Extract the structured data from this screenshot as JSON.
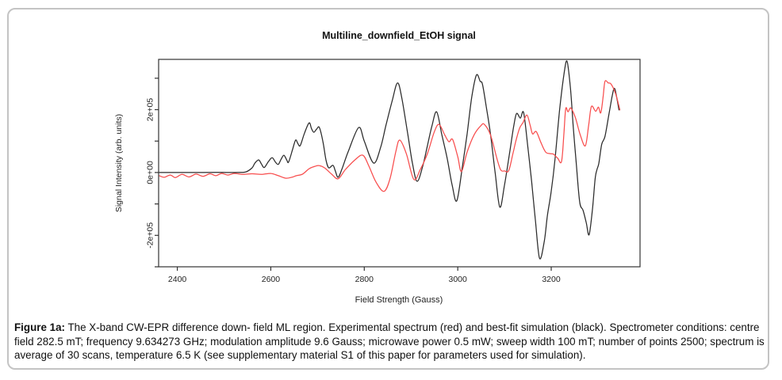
{
  "figure": {
    "background": "#ffffff",
    "border_color": "#c4c4c4",
    "axis_color": "#333333",
    "tick_label_color": "#222222"
  },
  "chart_data": {
    "type": "line",
    "title": "Multiline_downfield_EtOH signal",
    "xlabel": "Field Strength (Gauss)",
    "ylabel": "Signal Intensity (arb. units)",
    "xlim": [
      2360,
      3390
    ],
    "ylim": [
      -300000,
      360000
    ],
    "grid": false,
    "legend_position": "none",
    "x_ticks": [
      {
        "value": 2400,
        "label": "2400"
      },
      {
        "value": 2600,
        "label": "2600"
      },
      {
        "value": 2800,
        "label": "2800"
      },
      {
        "value": 3000,
        "label": "3000"
      },
      {
        "value": 3200,
        "label": "3200"
      }
    ],
    "y_ticks": [
      {
        "value": 300000,
        "label": ""
      },
      {
        "value": 200000,
        "label": "2e+05"
      },
      {
        "value": 100000,
        "label": ""
      },
      {
        "value": 0,
        "label": "0e+00"
      },
      {
        "value": -100000,
        "label": ""
      },
      {
        "value": -200000,
        "label": "-2e+05"
      },
      {
        "value": -300000,
        "label": ""
      }
    ],
    "series": [
      {
        "name": "best-fit simulation (black)",
        "color": "#2b2b2b",
        "points": [
          [
            2361,
            0
          ],
          [
            2400,
            0
          ],
          [
            2440,
            0
          ],
          [
            2480,
            500
          ],
          [
            2510,
            0
          ],
          [
            2535,
            500
          ],
          [
            2547,
            2000
          ],
          [
            2560,
            15000
          ],
          [
            2566,
            30000
          ],
          [
            2574,
            40000
          ],
          [
            2580,
            27000
          ],
          [
            2586,
            16000
          ],
          [
            2595,
            35000
          ],
          [
            2603,
            47000
          ],
          [
            2610,
            33000
          ],
          [
            2616,
            26000
          ],
          [
            2622,
            42000
          ],
          [
            2628,
            55000
          ],
          [
            2634,
            40000
          ],
          [
            2638,
            33000
          ],
          [
            2646,
            70000
          ],
          [
            2653,
            103000
          ],
          [
            2658,
            92000
          ],
          [
            2663,
            86000
          ],
          [
            2672,
            125000
          ],
          [
            2682,
            158000
          ],
          [
            2687,
            140000
          ],
          [
            2692,
            128000
          ],
          [
            2698,
            138000
          ],
          [
            2704,
            143000
          ],
          [
            2712,
            95000
          ],
          [
            2718,
            40000
          ],
          [
            2724,
            15000
          ],
          [
            2733,
            23000
          ],
          [
            2738,
            5000
          ],
          [
            2744,
            -15000
          ],
          [
            2752,
            10000
          ],
          [
            2766,
            68000
          ],
          [
            2788,
            143000
          ],
          [
            2800,
            100000
          ],
          [
            2820,
            30000
          ],
          [
            2835,
            80000
          ],
          [
            2846,
            148000
          ],
          [
            2860,
            230000
          ],
          [
            2871,
            285000
          ],
          [
            2880,
            240000
          ],
          [
            2893,
            123000
          ],
          [
            2903,
            30000
          ],
          [
            2913,
            -28000
          ],
          [
            2925,
            20000
          ],
          [
            2935,
            85000
          ],
          [
            2945,
            150000
          ],
          [
            2955,
            193000
          ],
          [
            2966,
            120000
          ],
          [
            2977,
            48000
          ],
          [
            2988,
            -40000
          ],
          [
            2998,
            -90000
          ],
          [
            3010,
            20000
          ],
          [
            3020,
            123000
          ],
          [
            3030,
            240000
          ],
          [
            3040,
            310000
          ],
          [
            3048,
            290000
          ],
          [
            3053,
            280000
          ],
          [
            3062,
            200000
          ],
          [
            3070,
            123000
          ],
          [
            3080,
            0
          ],
          [
            3090,
            -110000
          ],
          [
            3100,
            -40000
          ],
          [
            3112,
            73000
          ],
          [
            3120,
            150000
          ],
          [
            3126,
            188000
          ],
          [
            3134,
            173000
          ],
          [
            3141,
            190000
          ],
          [
            3150,
            80000
          ],
          [
            3158,
            -28000
          ],
          [
            3166,
            -150000
          ],
          [
            3175,
            -273000
          ],
          [
            3185,
            -220000
          ],
          [
            3192,
            -135000
          ],
          [
            3200,
            -60000
          ],
          [
            3208,
            40000
          ],
          [
            3218,
            200000
          ],
          [
            3228,
            320000
          ],
          [
            3234,
            353000
          ],
          [
            3241,
            270000
          ],
          [
            3247,
            148000
          ],
          [
            3254,
            20000
          ],
          [
            3261,
            -95000
          ],
          [
            3268,
            -120000
          ],
          [
            3275,
            -160000
          ],
          [
            3281,
            -198000
          ],
          [
            3288,
            -120000
          ],
          [
            3294,
            -20000
          ],
          [
            3298,
            10000
          ],
          [
            3302,
            30000
          ],
          [
            3308,
            90000
          ],
          [
            3315,
            115000
          ],
          [
            3324,
            190000
          ],
          [
            3330,
            240000
          ],
          [
            3335,
            268000
          ],
          [
            3340,
            240000
          ],
          [
            3345,
            198000
          ]
        ]
      },
      {
        "name": "experimental spectrum (red)",
        "color": "#f84d4d",
        "points": [
          [
            2361,
            -10000
          ],
          [
            2372,
            -15000
          ],
          [
            2385,
            -8000
          ],
          [
            2396,
            -16000
          ],
          [
            2410,
            -6000
          ],
          [
            2425,
            -14000
          ],
          [
            2440,
            -5000
          ],
          [
            2455,
            -12000
          ],
          [
            2470,
            -4000
          ],
          [
            2482,
            -10000
          ],
          [
            2495,
            -3000
          ],
          [
            2508,
            -8000
          ],
          [
            2522,
            -3000
          ],
          [
            2540,
            -6000
          ],
          [
            2560,
            -4000
          ],
          [
            2580,
            -6000
          ],
          [
            2600,
            -3000
          ],
          [
            2616,
            -10000
          ],
          [
            2632,
            -18000
          ],
          [
            2645,
            -15000
          ],
          [
            2655,
            -10000
          ],
          [
            2668,
            -5000
          ],
          [
            2682,
            12000
          ],
          [
            2695,
            20000
          ],
          [
            2704,
            22000
          ],
          [
            2715,
            15000
          ],
          [
            2730,
            -5000
          ],
          [
            2744,
            -20000
          ],
          [
            2760,
            10000
          ],
          [
            2780,
            40000
          ],
          [
            2797,
            55000
          ],
          [
            2810,
            20000
          ],
          [
            2825,
            -30000
          ],
          [
            2842,
            -60000
          ],
          [
            2855,
            -20000
          ],
          [
            2868,
            70000
          ],
          [
            2876,
            103000
          ],
          [
            2890,
            60000
          ],
          [
            2906,
            -22000
          ],
          [
            2920,
            10000
          ],
          [
            2935,
            60000
          ],
          [
            2950,
            130000
          ],
          [
            2960,
            153000
          ],
          [
            2972,
            120000
          ],
          [
            2981,
            98000
          ],
          [
            2989,
            105000
          ],
          [
            3000,
            50000
          ],
          [
            3008,
            3000
          ],
          [
            3020,
            65000
          ],
          [
            3035,
            120000
          ],
          [
            3050,
            150000
          ],
          [
            3057,
            153000
          ],
          [
            3070,
            120000
          ],
          [
            3084,
            43000
          ],
          [
            3092,
            8000
          ],
          [
            3100,
            5000
          ],
          [
            3109,
            6000
          ],
          [
            3118,
            60000
          ],
          [
            3124,
            98000
          ],
          [
            3132,
            140000
          ],
          [
            3140,
            160000
          ],
          [
            3148,
            183000
          ],
          [
            3155,
            150000
          ],
          [
            3160,
            123000
          ],
          [
            3168,
            130000
          ],
          [
            3178,
            95000
          ],
          [
            3188,
            65000
          ],
          [
            3198,
            60000
          ],
          [
            3205,
            58000
          ],
          [
            3214,
            45000
          ],
          [
            3222,
            35000
          ],
          [
            3227,
            120000
          ],
          [
            3231,
            203000
          ],
          [
            3236,
            193000
          ],
          [
            3242,
            205000
          ],
          [
            3252,
            173000
          ],
          [
            3262,
            120000
          ],
          [
            3273,
            85000
          ],
          [
            3280,
            150000
          ],
          [
            3286,
            210000
          ],
          [
            3295,
            195000
          ],
          [
            3301,
            208000
          ],
          [
            3306,
            190000
          ],
          [
            3311,
            240000
          ],
          [
            3315,
            290000
          ],
          [
            3322,
            285000
          ],
          [
            3327,
            283000
          ],
          [
            3334,
            265000
          ],
          [
            3340,
            240000
          ],
          [
            3347,
            198000
          ]
        ]
      }
    ]
  },
  "caption": {
    "label": "Figure 1a:",
    "text": " The X-band CW-EPR difference down- field ML region. Experimental spectrum (red) and best-fit simulation (black). Spectrometer conditions: centre field 282.5 mT; frequency 9.634273 GHz; modulation amplitude 9.6 Gauss; microwave power 0.5 mW; sweep width 100 mT; number of points 2500; spectrum is average of 30 scans, temperature 6.5 K (see supplementary material S1 of this paper for parameters used for simulation)."
  }
}
